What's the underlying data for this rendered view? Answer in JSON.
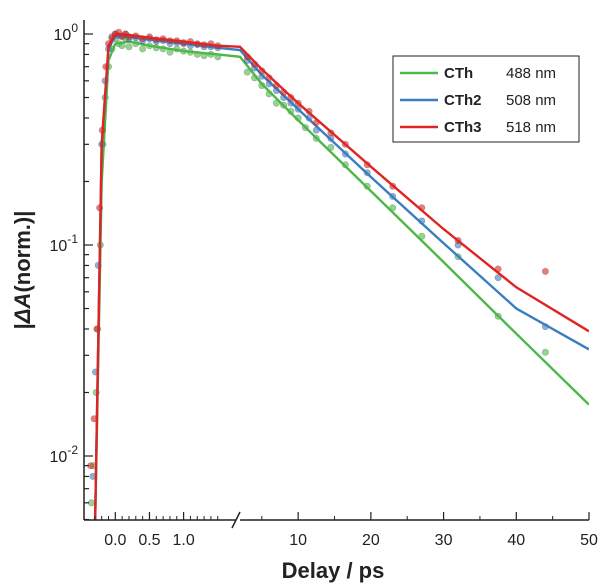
{
  "chart_data": {
    "type": "scatter",
    "xlabel": "Delay / ps",
    "ylabel_prefix": "|",
    "ylabel_italic": "ΔA",
    "ylabel_suffix": "(norm.)|",
    "yscale": "log",
    "ylim": [
      0.005,
      1.2
    ],
    "x_axis": {
      "broken": true,
      "early_segment": {
        "range": [
          -0.4,
          1.65
        ],
        "ticks": [
          0.0,
          0.5,
          1.0
        ],
        "tick_labels": [
          "0.0",
          "0.5",
          "1.0"
        ]
      },
      "late_segment": {
        "range": [
          2.0,
          50
        ],
        "ticks": [
          10,
          20,
          30,
          40,
          50
        ],
        "tick_labels": [
          "10",
          "20",
          "30",
          "40",
          "50"
        ]
      }
    },
    "y_ticks": [
      {
        "value": 1,
        "base": "10",
        "exp": "0"
      },
      {
        "value": 0.1,
        "base": "10",
        "exp": "-1"
      },
      {
        "value": 0.01,
        "base": "10",
        "exp": "-2"
      }
    ],
    "legend": {
      "position": "top-right"
    },
    "series": [
      {
        "name": "CTh",
        "wavelength": "488 nm",
        "color": "#4cb848",
        "fit_early": [
          [
            -0.3,
            0.004
          ],
          [
            -0.2,
            0.2
          ],
          [
            -0.1,
            0.75
          ],
          [
            0.0,
            0.9
          ],
          [
            0.2,
            0.92
          ],
          [
            0.5,
            0.88
          ],
          [
            1.0,
            0.83
          ],
          [
            1.5,
            0.8
          ]
        ],
        "fit_late": [
          [
            2,
            0.78
          ],
          [
            5,
            0.58
          ],
          [
            10,
            0.39
          ],
          [
            20,
            0.18
          ],
          [
            30,
            0.083
          ],
          [
            40,
            0.038
          ],
          [
            50,
            0.0175
          ]
        ],
        "points_early": [
          [
            -0.35,
            0.006
          ],
          [
            -0.32,
            0.009
          ],
          [
            -0.28,
            0.02
          ],
          [
            -0.26,
            0.04
          ],
          [
            -0.22,
            0.1
          ],
          [
            -0.18,
            0.3
          ],
          [
            -0.15,
            0.5
          ],
          [
            -0.1,
            0.7
          ],
          [
            -0.05,
            0.85
          ],
          [
            0.0,
            0.95
          ],
          [
            0.05,
            0.9
          ],
          [
            0.1,
            0.88
          ],
          [
            0.15,
            0.95
          ],
          [
            0.2,
            0.87
          ],
          [
            0.3,
            0.9
          ],
          [
            0.4,
            0.85
          ],
          [
            0.5,
            0.88
          ],
          [
            0.6,
            0.86
          ],
          [
            0.7,
            0.85
          ],
          [
            0.8,
            0.82
          ],
          [
            0.9,
            0.85
          ],
          [
            1.0,
            0.83
          ],
          [
            1.1,
            0.82
          ],
          [
            1.2,
            0.8
          ],
          [
            1.3,
            0.79
          ],
          [
            1.4,
            0.8
          ],
          [
            1.5,
            0.78
          ]
        ],
        "points_late": [
          [
            3,
            0.66
          ],
          [
            4,
            0.62
          ],
          [
            5,
            0.57
          ],
          [
            6,
            0.52
          ],
          [
            7,
            0.47
          ],
          [
            8,
            0.46
          ],
          [
            9,
            0.43
          ],
          [
            10,
            0.4
          ],
          [
            11,
            0.36
          ],
          [
            12.5,
            0.32
          ],
          [
            14.5,
            0.29
          ],
          [
            16.5,
            0.24
          ],
          [
            19.5,
            0.19
          ],
          [
            23,
            0.15
          ],
          [
            27,
            0.11
          ],
          [
            32,
            0.088
          ],
          [
            37.5,
            0.046
          ],
          [
            44,
            0.031
          ]
        ]
      },
      {
        "name": "CTh2",
        "wavelength": "508 nm",
        "color": "#3a7ec0",
        "fit_early": [
          [
            -0.3,
            0.004
          ],
          [
            -0.2,
            0.3
          ],
          [
            -0.1,
            0.85
          ],
          [
            0.0,
            0.98
          ],
          [
            0.2,
            0.97
          ],
          [
            0.5,
            0.94
          ],
          [
            1.0,
            0.9
          ],
          [
            1.5,
            0.86
          ]
        ],
        "fit_late": [
          [
            2,
            0.84
          ],
          [
            5,
            0.64
          ],
          [
            10,
            0.44
          ],
          [
            20,
            0.21
          ],
          [
            30,
            0.102
          ],
          [
            40,
            0.05
          ],
          [
            50,
            0.032
          ]
        ],
        "points_early": [
          [
            -0.33,
            0.008
          ],
          [
            -0.29,
            0.025
          ],
          [
            -0.25,
            0.08
          ],
          [
            -0.2,
            0.3
          ],
          [
            -0.15,
            0.6
          ],
          [
            -0.1,
            0.85
          ],
          [
            -0.05,
            0.95
          ],
          [
            0.0,
            1.0
          ],
          [
            0.05,
            0.98
          ],
          [
            0.1,
            0.97
          ],
          [
            0.15,
            1.0
          ],
          [
            0.2,
            0.95
          ],
          [
            0.3,
            0.96
          ],
          [
            0.4,
            0.93
          ],
          [
            0.5,
            0.95
          ],
          [
            0.6,
            0.92
          ],
          [
            0.7,
            0.93
          ],
          [
            0.8,
            0.9
          ],
          [
            0.9,
            0.91
          ],
          [
            1.0,
            0.9
          ],
          [
            1.1,
            0.88
          ],
          [
            1.2,
            0.89
          ],
          [
            1.3,
            0.87
          ],
          [
            1.4,
            0.87
          ],
          [
            1.5,
            0.86
          ]
        ],
        "points_late": [
          [
            3,
            0.75
          ],
          [
            4,
            0.69
          ],
          [
            5,
            0.63
          ],
          [
            6,
            0.58
          ],
          [
            7,
            0.54
          ],
          [
            8,
            0.5
          ],
          [
            9,
            0.47
          ],
          [
            10,
            0.44
          ],
          [
            11.5,
            0.4
          ],
          [
            12.5,
            0.35
          ],
          [
            14.5,
            0.32
          ],
          [
            16.5,
            0.27
          ],
          [
            19.5,
            0.22
          ],
          [
            23,
            0.17
          ],
          [
            27,
            0.13
          ],
          [
            32,
            0.1
          ],
          [
            37.5,
            0.07
          ],
          [
            44,
            0.041
          ]
        ]
      },
      {
        "name": "CTh3",
        "wavelength": "518 nm",
        "color": "#e02424",
        "fit_early": [
          [
            -0.3,
            0.004
          ],
          [
            -0.2,
            0.3
          ],
          [
            -0.1,
            0.88
          ],
          [
            0.0,
            1.0
          ],
          [
            0.2,
            0.99
          ],
          [
            0.5,
            0.96
          ],
          [
            1.0,
            0.92
          ],
          [
            1.5,
            0.88
          ]
        ],
        "fit_late": [
          [
            2,
            0.87
          ],
          [
            5,
            0.68
          ],
          [
            10,
            0.47
          ],
          [
            20,
            0.235
          ],
          [
            30,
            0.119
          ],
          [
            40,
            0.063
          ],
          [
            50,
            0.039
          ]
        ],
        "points_early": [
          [
            -0.36,
            0.009
          ],
          [
            -0.31,
            0.015
          ],
          [
            -0.27,
            0.04
          ],
          [
            -0.23,
            0.15
          ],
          [
            -0.19,
            0.35
          ],
          [
            -0.14,
            0.7
          ],
          [
            -0.1,
            0.9
          ],
          [
            -0.05,
            0.97
          ],
          [
            0.0,
            1.0
          ],
          [
            0.05,
            1.02
          ],
          [
            0.1,
            0.98
          ],
          [
            0.15,
            1.0
          ],
          [
            0.2,
            0.97
          ],
          [
            0.3,
            0.98
          ],
          [
            0.4,
            0.95
          ],
          [
            0.5,
            0.97
          ],
          [
            0.6,
            0.94
          ],
          [
            0.7,
            0.95
          ],
          [
            0.8,
            0.93
          ],
          [
            0.9,
            0.93
          ],
          [
            1.0,
            0.91
          ],
          [
            1.1,
            0.92
          ],
          [
            1.2,
            0.9
          ],
          [
            1.3,
            0.89
          ],
          [
            1.4,
            0.9
          ],
          [
            1.5,
            0.88
          ]
        ],
        "points_late": [
          [
            3,
            0.78
          ],
          [
            4,
            0.72
          ],
          [
            5,
            0.67
          ],
          [
            6,
            0.62
          ],
          [
            7,
            0.57
          ],
          [
            8,
            0.53
          ],
          [
            9,
            0.5
          ],
          [
            10,
            0.47
          ],
          [
            11.5,
            0.43
          ],
          [
            12.5,
            0.38
          ],
          [
            14.5,
            0.34
          ],
          [
            16.5,
            0.3
          ],
          [
            19.5,
            0.24
          ],
          [
            23,
            0.19
          ],
          [
            27,
            0.15
          ],
          [
            32,
            0.105
          ],
          [
            37.5,
            0.077
          ],
          [
            44,
            0.075
          ]
        ]
      }
    ]
  }
}
